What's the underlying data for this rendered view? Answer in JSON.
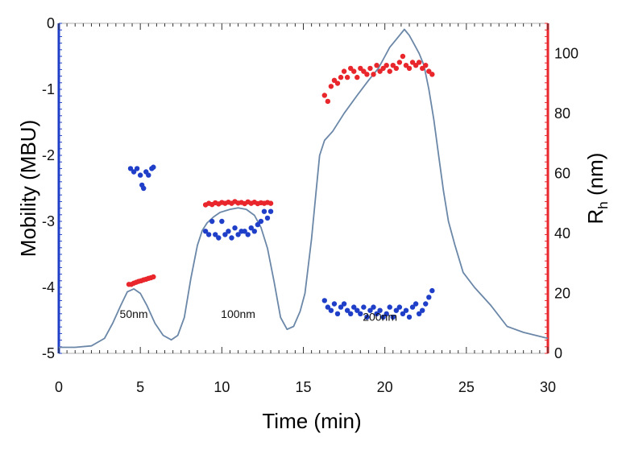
{
  "chart_data": {
    "type": "scatter",
    "xlabel": "Time (min)",
    "ylabel_left": "Mobility (MBU)",
    "ylabel_right_main": "R",
    "ylabel_right_sub": "h",
    "ylabel_right_unit": " (nm)",
    "xlim": [
      0,
      30
    ],
    "ylim_left": [
      -5,
      0
    ],
    "ylim_right": [
      0,
      110
    ],
    "x_ticks": [
      "0",
      "5",
      "10",
      "15",
      "20",
      "25",
      "30"
    ],
    "left_ticks": [
      "0",
      "-1",
      "-2",
      "-3",
      "-4",
      "-5"
    ],
    "right_ticks": [
      "0",
      "20",
      "40",
      "60",
      "80",
      "100"
    ],
    "annotations": [
      {
        "text": "50nm",
        "x": 4.6,
        "y_right": 7
      },
      {
        "text": "100nm",
        "x": 11.0,
        "y_right": 7
      },
      {
        "text": "200nm",
        "x": 19.7,
        "y_right": 6
      }
    ],
    "colors": {
      "trace": "#6b87a8",
      "rh": "#e8262b",
      "mobility": "#1f3fc8",
      "right_axis": "#e8262b",
      "left_axis": "#1f3fc8"
    },
    "series": [
      {
        "kind": "trace_right_axis",
        "x": [
          0,
          1,
          2,
          2.8,
          3.3,
          3.8,
          4.2,
          4.6,
          5.0,
          5.4,
          5.9,
          6.4,
          6.9,
          7.3,
          7.7,
          8.1,
          8.5,
          8.8,
          9.1,
          9.5,
          9.9,
          10.5,
          11.0,
          11.5,
          12.0,
          12.4,
          12.8,
          13.2,
          13.6,
          14.0,
          14.4,
          14.8,
          15.1,
          15.5,
          15.8,
          16.0,
          16.3,
          16.8,
          17.5,
          18.3,
          19.0,
          19.6,
          20.0,
          20.3,
          20.6,
          20.9,
          21.2,
          21.5,
          21.8,
          22.1,
          22.4,
          22.7,
          23.0,
          23.3,
          23.6,
          23.9,
          24.3,
          24.8,
          25.5,
          26.5,
          27.5,
          28.5,
          30
        ],
        "y": [
          2,
          2,
          2.5,
          5,
          10,
          16,
          20.5,
          21.5,
          20,
          16,
          10,
          6,
          4.5,
          6,
          12,
          25,
          36,
          41,
          43.5,
          45.5,
          47,
          48,
          48.5,
          48,
          46,
          42,
          35,
          24,
          12,
          8,
          9,
          14,
          20,
          38,
          55,
          66,
          71,
          74,
          80,
          86,
          91,
          95,
          99,
          102,
          104,
          106,
          108,
          106,
          103,
          100,
          96,
          88,
          78,
          66,
          54,
          44,
          36,
          27,
          22,
          16,
          9,
          7,
          5
        ]
      },
      {
        "kind": "rh_points",
        "points": [
          [
            4.3,
            23
          ],
          [
            4.45,
            23
          ],
          [
            4.6,
            23.4
          ],
          [
            4.75,
            23.7
          ],
          [
            4.9,
            24
          ],
          [
            5.05,
            24.2
          ],
          [
            5.2,
            24.5
          ],
          [
            5.35,
            24.7
          ],
          [
            5.5,
            25
          ],
          [
            5.65,
            25.2
          ],
          [
            5.8,
            25.5
          ],
          [
            9.0,
            49.5
          ],
          [
            9.2,
            50
          ],
          [
            9.4,
            49.6
          ],
          [
            9.6,
            50.2
          ],
          [
            9.8,
            49.8
          ],
          [
            10.0,
            50.3
          ],
          [
            10.2,
            50
          ],
          [
            10.4,
            50.4
          ],
          [
            10.6,
            50
          ],
          [
            10.8,
            50.6
          ],
          [
            11.0,
            50.1
          ],
          [
            11.2,
            50.3
          ],
          [
            11.4,
            49.9
          ],
          [
            11.6,
            50.5
          ],
          [
            11.8,
            50
          ],
          [
            12.0,
            50.4
          ],
          [
            12.2,
            49.9
          ],
          [
            12.4,
            50.2
          ],
          [
            12.6,
            50
          ],
          [
            12.8,
            50.3
          ],
          [
            13.0,
            50
          ],
          [
            16.3,
            86
          ],
          [
            16.5,
            84
          ],
          [
            16.7,
            89
          ],
          [
            16.9,
            91
          ],
          [
            17.1,
            90
          ],
          [
            17.3,
            92
          ],
          [
            17.5,
            94
          ],
          [
            17.7,
            92
          ],
          [
            17.9,
            95
          ],
          [
            18.1,
            94
          ],
          [
            18.3,
            92
          ],
          [
            18.5,
            95
          ],
          [
            18.7,
            94
          ],
          [
            18.9,
            93
          ],
          [
            19.1,
            95
          ],
          [
            19.3,
            93
          ],
          [
            19.5,
            96
          ],
          [
            19.7,
            94
          ],
          [
            19.9,
            95
          ],
          [
            20.1,
            96
          ],
          [
            20.3,
            94
          ],
          [
            20.5,
            96
          ],
          [
            20.7,
            95
          ],
          [
            20.9,
            97
          ],
          [
            21.1,
            99
          ],
          [
            21.3,
            96
          ],
          [
            21.5,
            95
          ],
          [
            21.7,
            97
          ],
          [
            21.9,
            96
          ],
          [
            22.1,
            97
          ],
          [
            22.3,
            95
          ],
          [
            22.5,
            96
          ],
          [
            22.7,
            94
          ],
          [
            22.9,
            93
          ]
        ]
      },
      {
        "kind": "mobility_points",
        "points": [
          [
            4.4,
            -2.2
          ],
          [
            4.6,
            -2.25
          ],
          [
            4.8,
            -2.2
          ],
          [
            5.0,
            -2.3
          ],
          [
            5.1,
            -2.45
          ],
          [
            5.2,
            -2.5
          ],
          [
            5.35,
            -2.25
          ],
          [
            5.5,
            -2.3
          ],
          [
            5.7,
            -2.2
          ],
          [
            5.8,
            -2.18
          ],
          [
            9.0,
            -3.15
          ],
          [
            9.2,
            -3.2
          ],
          [
            9.4,
            -3.0
          ],
          [
            9.6,
            -3.2
          ],
          [
            9.8,
            -3.25
          ],
          [
            10.0,
            -3.0
          ],
          [
            10.2,
            -3.2
          ],
          [
            10.4,
            -3.15
          ],
          [
            10.6,
            -3.25
          ],
          [
            10.8,
            -3.1
          ],
          [
            11.0,
            -3.2
          ],
          [
            11.2,
            -3.15
          ],
          [
            11.4,
            -3.15
          ],
          [
            11.6,
            -3.2
          ],
          [
            11.8,
            -3.1
          ],
          [
            12.0,
            -3.15
          ],
          [
            12.2,
            -3.05
          ],
          [
            12.4,
            -3.0
          ],
          [
            12.6,
            -2.85
          ],
          [
            12.8,
            -2.95
          ],
          [
            13.0,
            -2.85
          ],
          [
            16.3,
            -4.2
          ],
          [
            16.5,
            -4.3
          ],
          [
            16.7,
            -4.35
          ],
          [
            16.9,
            -4.25
          ],
          [
            17.1,
            -4.4
          ],
          [
            17.3,
            -4.3
          ],
          [
            17.5,
            -4.25
          ],
          [
            17.7,
            -4.35
          ],
          [
            17.9,
            -4.4
          ],
          [
            18.1,
            -4.3
          ],
          [
            18.3,
            -4.35
          ],
          [
            18.5,
            -4.4
          ],
          [
            18.7,
            -4.3
          ],
          [
            18.9,
            -4.45
          ],
          [
            19.1,
            -4.35
          ],
          [
            19.3,
            -4.3
          ],
          [
            19.5,
            -4.4
          ],
          [
            19.7,
            -4.35
          ],
          [
            19.9,
            -4.45
          ],
          [
            20.1,
            -4.4
          ],
          [
            20.3,
            -4.3
          ],
          [
            20.5,
            -4.45
          ],
          [
            20.7,
            -4.35
          ],
          [
            20.9,
            -4.3
          ],
          [
            21.1,
            -4.4
          ],
          [
            21.3,
            -4.35
          ],
          [
            21.5,
            -4.45
          ],
          [
            21.7,
            -4.3
          ],
          [
            21.9,
            -4.25
          ],
          [
            22.1,
            -4.4
          ],
          [
            22.3,
            -4.35
          ],
          [
            22.5,
            -4.25
          ],
          [
            22.7,
            -4.15
          ],
          [
            22.9,
            -4.05
          ]
        ]
      }
    ]
  }
}
